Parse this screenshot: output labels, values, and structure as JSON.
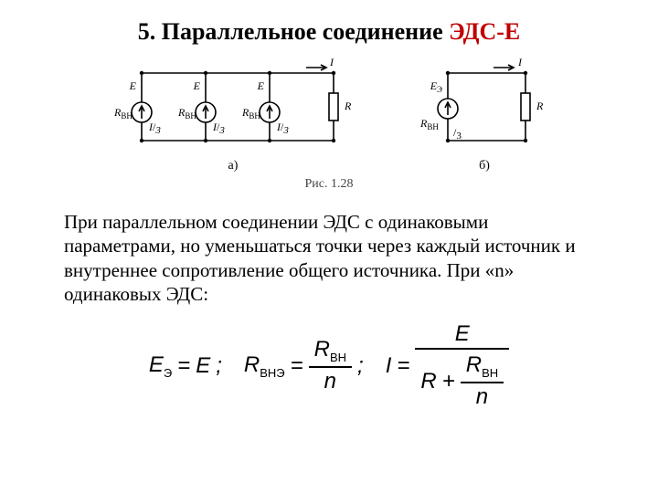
{
  "title_prefix": "5. Параллельное соединение ",
  "title_red": "ЭДС-Е",
  "circuit_a": {
    "sources": [
      {
        "emf_label": "E",
        "r_label": "R",
        "r_sub": "ВН",
        "i_label": "I",
        "i_div": "3"
      },
      {
        "emf_label": "E",
        "r_label": "R",
        "r_sub": "ВН",
        "i_label": "I",
        "i_div": "3"
      },
      {
        "emf_label": "E",
        "r_label": "R",
        "r_sub": "ВН",
        "i_label": "I",
        "i_div": "3"
      }
    ],
    "load_label": "R",
    "total_i": "I",
    "sub": "а)"
  },
  "circuit_b": {
    "emf_label": "E",
    "emf_sub": "Э",
    "r_label": "R",
    "r_sub": "ВН",
    "r_div": "3",
    "load_label": "R",
    "total_i": "I",
    "sub": "б)"
  },
  "fig_caption": "Рис. 1.28",
  "paragraph": "При параллельном соединении ЭДС с одинаковыми параметрами, но уменьшаться точки через каждый источник и внутреннее сопротивление общего источника. При «n» одинаковых ЭДС:",
  "formulas": {
    "eq1_lhs": "E",
    "eq1_lsub": "Э",
    "eq1_rhs": "E",
    "eq2_lhs": "R",
    "eq2_lsub": "ВНЭ",
    "eq2_num": "R",
    "eq2_num_sub": "ВН",
    "eq2_den": "n",
    "eq3_lhs": "I",
    "eq3_num": "E",
    "eq3_den_R": "R",
    "eq3_den_frac_num": "R",
    "eq3_den_frac_num_sub": "ВН",
    "eq3_den_frac_den": "n"
  },
  "style": {
    "stroke": "#000000",
    "stroke_width": 1.6,
    "text_size": 12,
    "text_size_small": 9
  }
}
